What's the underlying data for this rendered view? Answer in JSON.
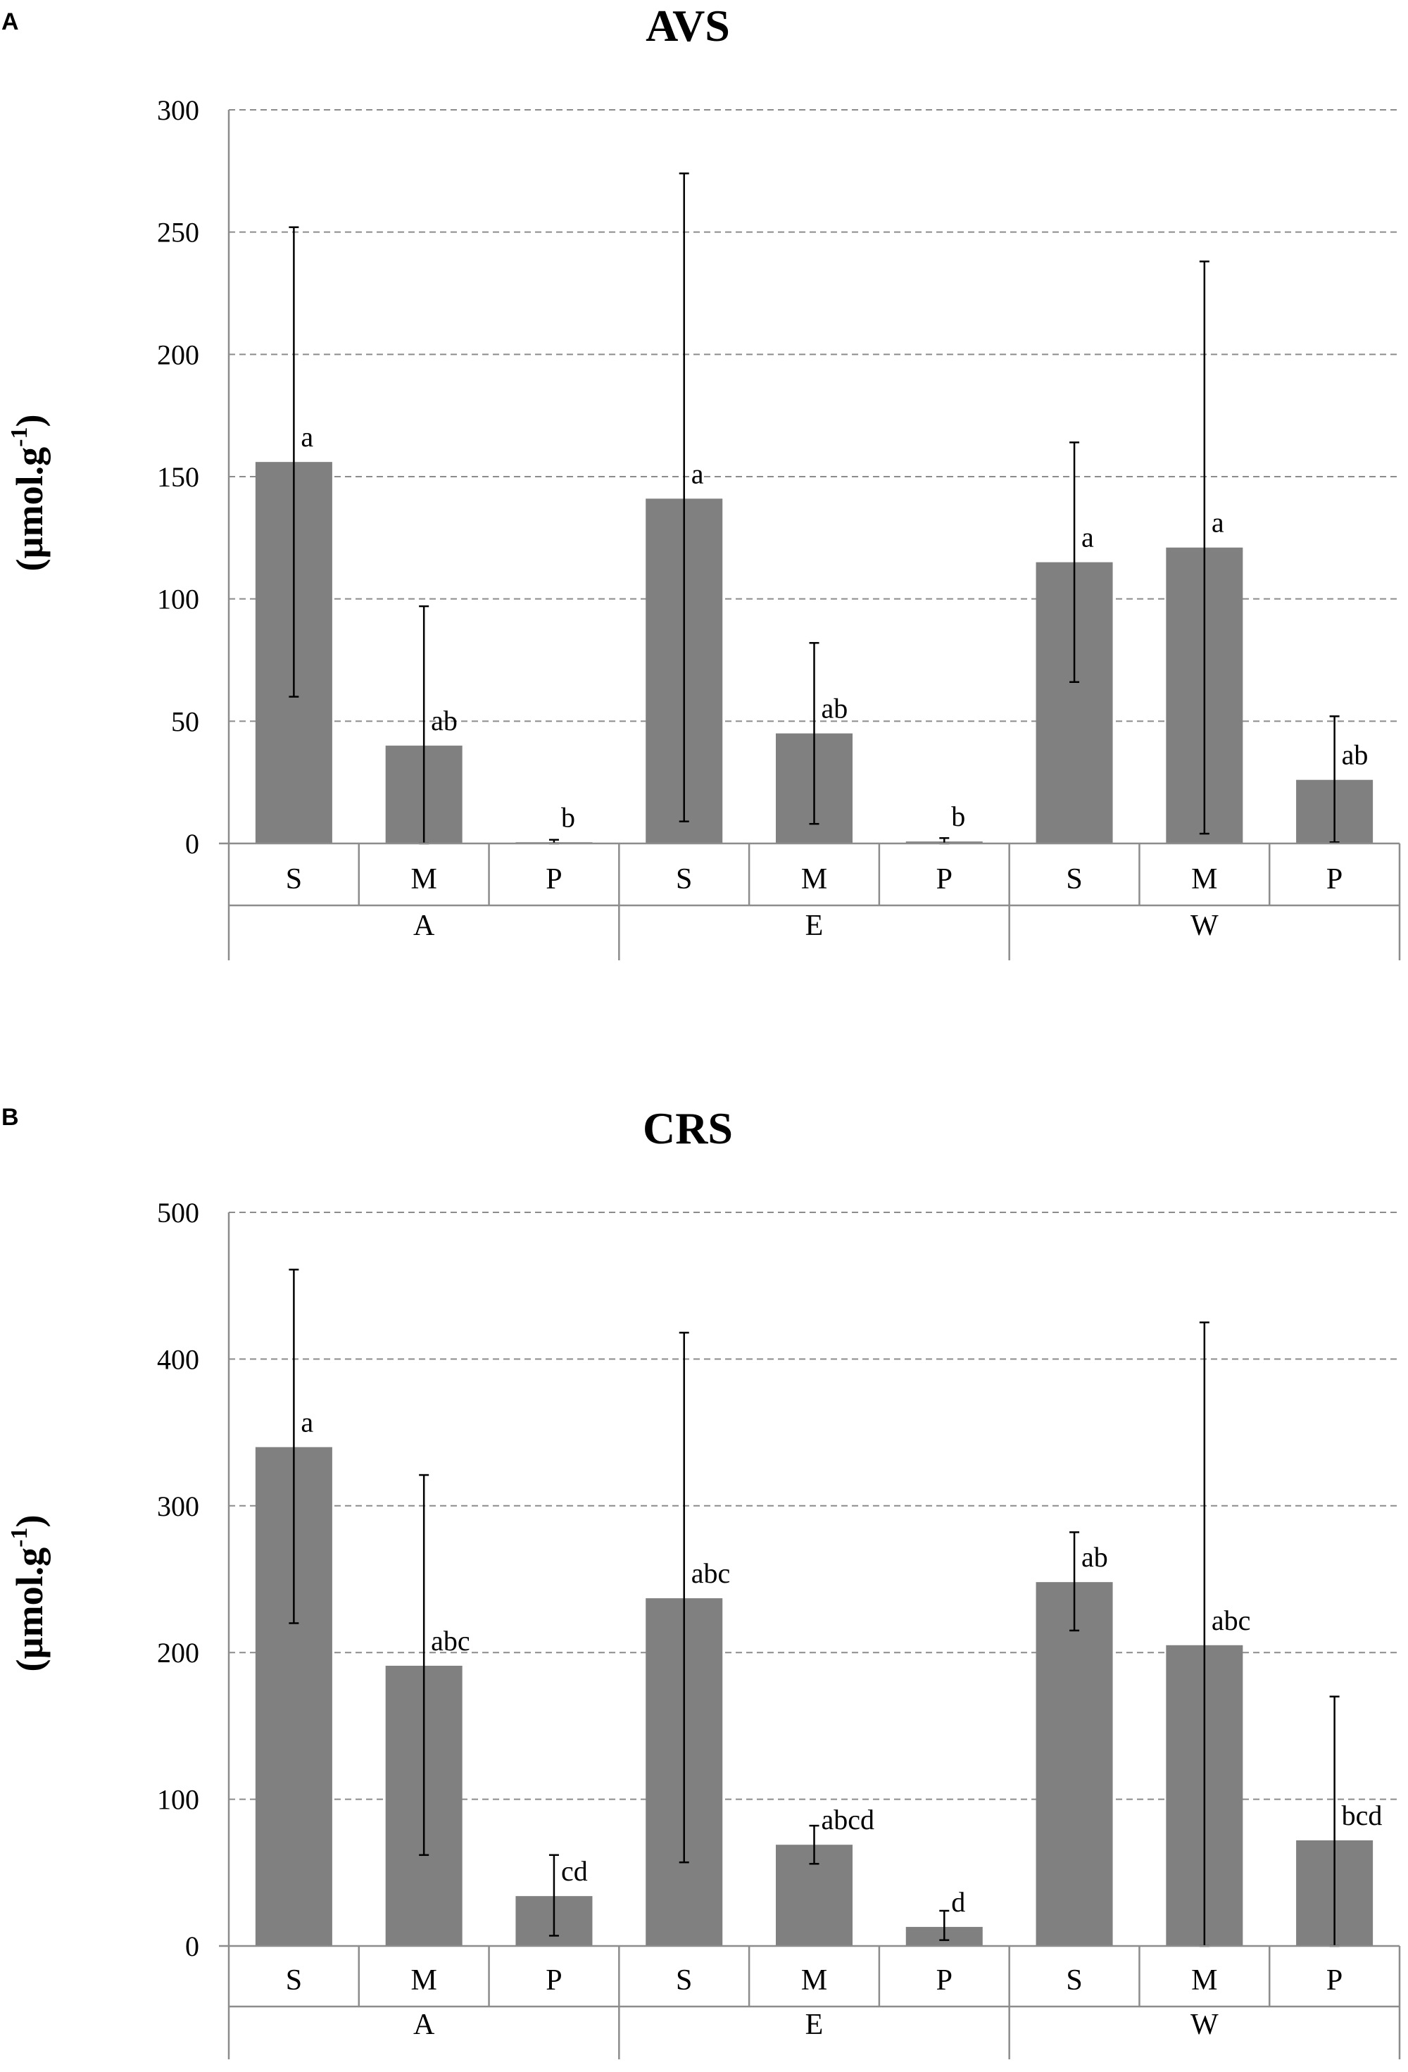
{
  "chart_data": [
    {
      "type": "bar",
      "panel": "A",
      "title": "AVS",
      "ylabel_main": "(µmol.g",
      "ylabel_sup": "-1",
      "ylabel_close": ")",
      "ylim": [
        0,
        300
      ],
      "yticks": [
        0,
        50,
        100,
        150,
        200,
        250,
        300
      ],
      "groups": [
        "A",
        "E",
        "W"
      ],
      "categories": [
        "S",
        "M",
        "P",
        "S",
        "M",
        "P",
        "S",
        "M",
        "P"
      ],
      "values": [
        156,
        40,
        0.5,
        141,
        45,
        0.8,
        115,
        121,
        26
      ],
      "error_low": [
        60,
        0,
        0,
        9,
        8,
        0,
        66,
        4,
        0.5
      ],
      "error_high": [
        252,
        97,
        1.5,
        274,
        82,
        2.2,
        164,
        238,
        52
      ],
      "labels": [
        "a",
        "ab",
        "b",
        "a",
        "ab",
        "b",
        "a",
        "a",
        "ab"
      ]
    },
    {
      "type": "bar",
      "panel": "B",
      "title": "CRS",
      "ylabel_main": "(µmol.g",
      "ylabel_sup": "-1",
      "ylabel_close": ")",
      "ylim": [
        0,
        500
      ],
      "yticks": [
        0,
        100,
        200,
        300,
        400,
        500
      ],
      "groups": [
        "A",
        "E",
        "W"
      ],
      "categories": [
        "S",
        "M",
        "P",
        "S",
        "M",
        "P",
        "S",
        "M",
        "P"
      ],
      "values": [
        340,
        191,
        34,
        237,
        69,
        13,
        248,
        205,
        72
      ],
      "error_low": [
        220,
        62,
        7,
        57,
        56,
        4,
        215,
        0,
        0
      ],
      "error_high": [
        461,
        321,
        62,
        418,
        82,
        24,
        282,
        425,
        170
      ],
      "labels": [
        "a",
        "abc",
        "cd",
        "abc",
        "abcd",
        "d",
        "ab",
        "abc",
        "bcd"
      ]
    }
  ]
}
